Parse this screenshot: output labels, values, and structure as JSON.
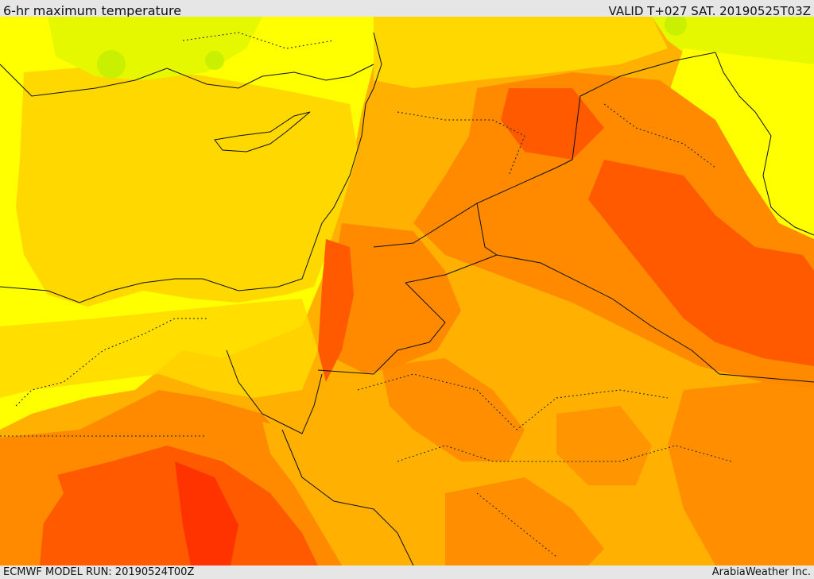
{
  "header": {
    "title": "6-hr maximum temperature",
    "valid": "VALID T+027 SAT. 20190525T03Z"
  },
  "footer": {
    "model_run": "ECMWF MODEL RUN: 20190524T00Z",
    "credit": "ArabiaWeather Inc."
  },
  "colors": {
    "lightgreen": "#c8f000",
    "greenish": "#e6f800",
    "yellow": "#ffff00",
    "gold": "#ffd800",
    "amber": "#ffb000",
    "orange": "#ff8a00",
    "deep_orange": "#ff5a00",
    "red": "#ff2200"
  }
}
